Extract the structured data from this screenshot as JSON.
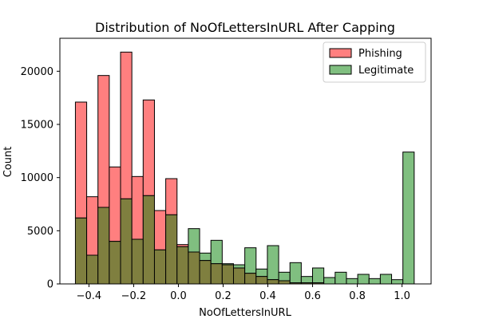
{
  "chart_data": {
    "type": "bar",
    "title": "Distribution of NoOfLettersInURL After Capping",
    "xlabel": "NoOfLettersInURL",
    "ylabel": "Count",
    "xlim": [
      -0.53,
      1.13
    ],
    "ylim": [
      0,
      23100
    ],
    "xticks": [
      -0.4,
      -0.2,
      0.0,
      0.2,
      0.4,
      0.6,
      0.8,
      1.0
    ],
    "xtick_labels": [
      "−0.4",
      "−0.2",
      "0.0",
      "0.2",
      "0.4",
      "0.6",
      "0.8",
      "1.0"
    ],
    "yticks": [
      0,
      5000,
      10000,
      15000,
      20000
    ],
    "ytick_labels": [
      "0",
      "5000",
      "10000",
      "15000",
      "20000"
    ],
    "bin_start": -0.4606,
    "bin_width": 0.0505,
    "series": [
      {
        "name": "Phishing",
        "color": "#ff7f7f",
        "values": [
          17100,
          8200,
          19600,
          11000,
          21800,
          10100,
          17300,
          6900,
          9900,
          3700,
          3000,
          2200,
          1900,
          1800,
          1500,
          1000,
          700,
          400,
          300,
          100,
          100,
          100,
          0,
          0,
          0,
          0,
          0,
          0,
          0,
          0
        ]
      },
      {
        "name": "Legitimate",
        "color": "#80bf80",
        "values": [
          6200,
          2700,
          7200,
          4000,
          8000,
          4200,
          8300,
          3200,
          6500,
          3500,
          5200,
          2900,
          4100,
          1900,
          1800,
          3400,
          1400,
          3600,
          1100,
          2000,
          700,
          1500,
          600,
          1100,
          500,
          900,
          500,
          900,
          400,
          12400
        ]
      }
    ],
    "overlap_color": "#7f7f3f",
    "legend_position": "top-right"
  }
}
